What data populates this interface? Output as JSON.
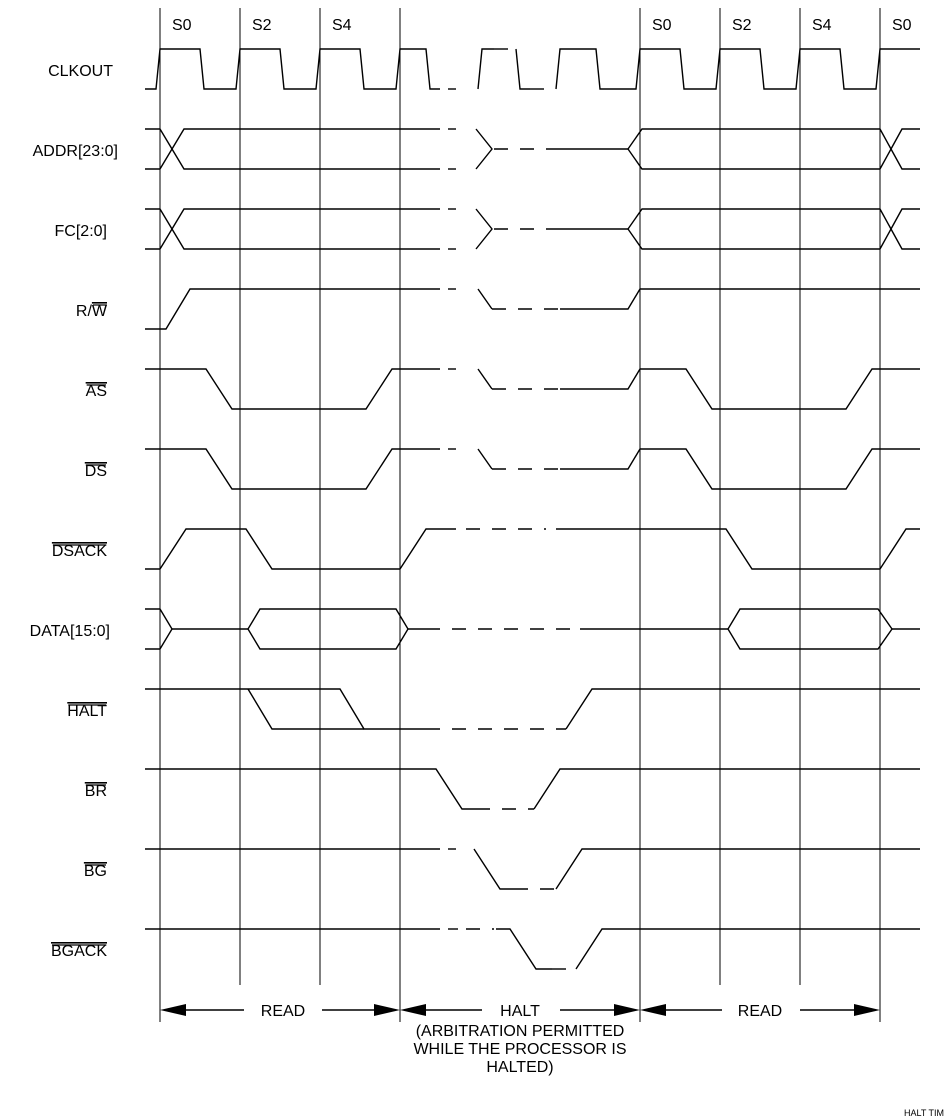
{
  "states": {
    "s0_a": "S0",
    "s2_a": "S2",
    "s4_a": "S4",
    "s0_b": "S0",
    "s2_b": "S2",
    "s4_b": "S4",
    "s0_c": "S0"
  },
  "signals": {
    "clkout": "CLKOUT",
    "addr": "ADDR[23:0]",
    "fc": "FC[2:0]",
    "rw_prefix": "R/",
    "rw_bar": "W",
    "as": "AS",
    "ds": "DS",
    "dsack": "DSACK",
    "data": "DATA[15:0]",
    "halt": "HALT",
    "br": "BR",
    "bg": "BG",
    "bgack": "BGACK"
  },
  "phases": {
    "read1": "READ",
    "halt": "HALT",
    "halt_note_1": "(ARBITRATION PERMITTED",
    "halt_note_2": "WHILE THE PROCESSOR IS",
    "halt_note_3": "HALTED)",
    "read2": "READ"
  },
  "figure_tag": "HALT TIM"
}
